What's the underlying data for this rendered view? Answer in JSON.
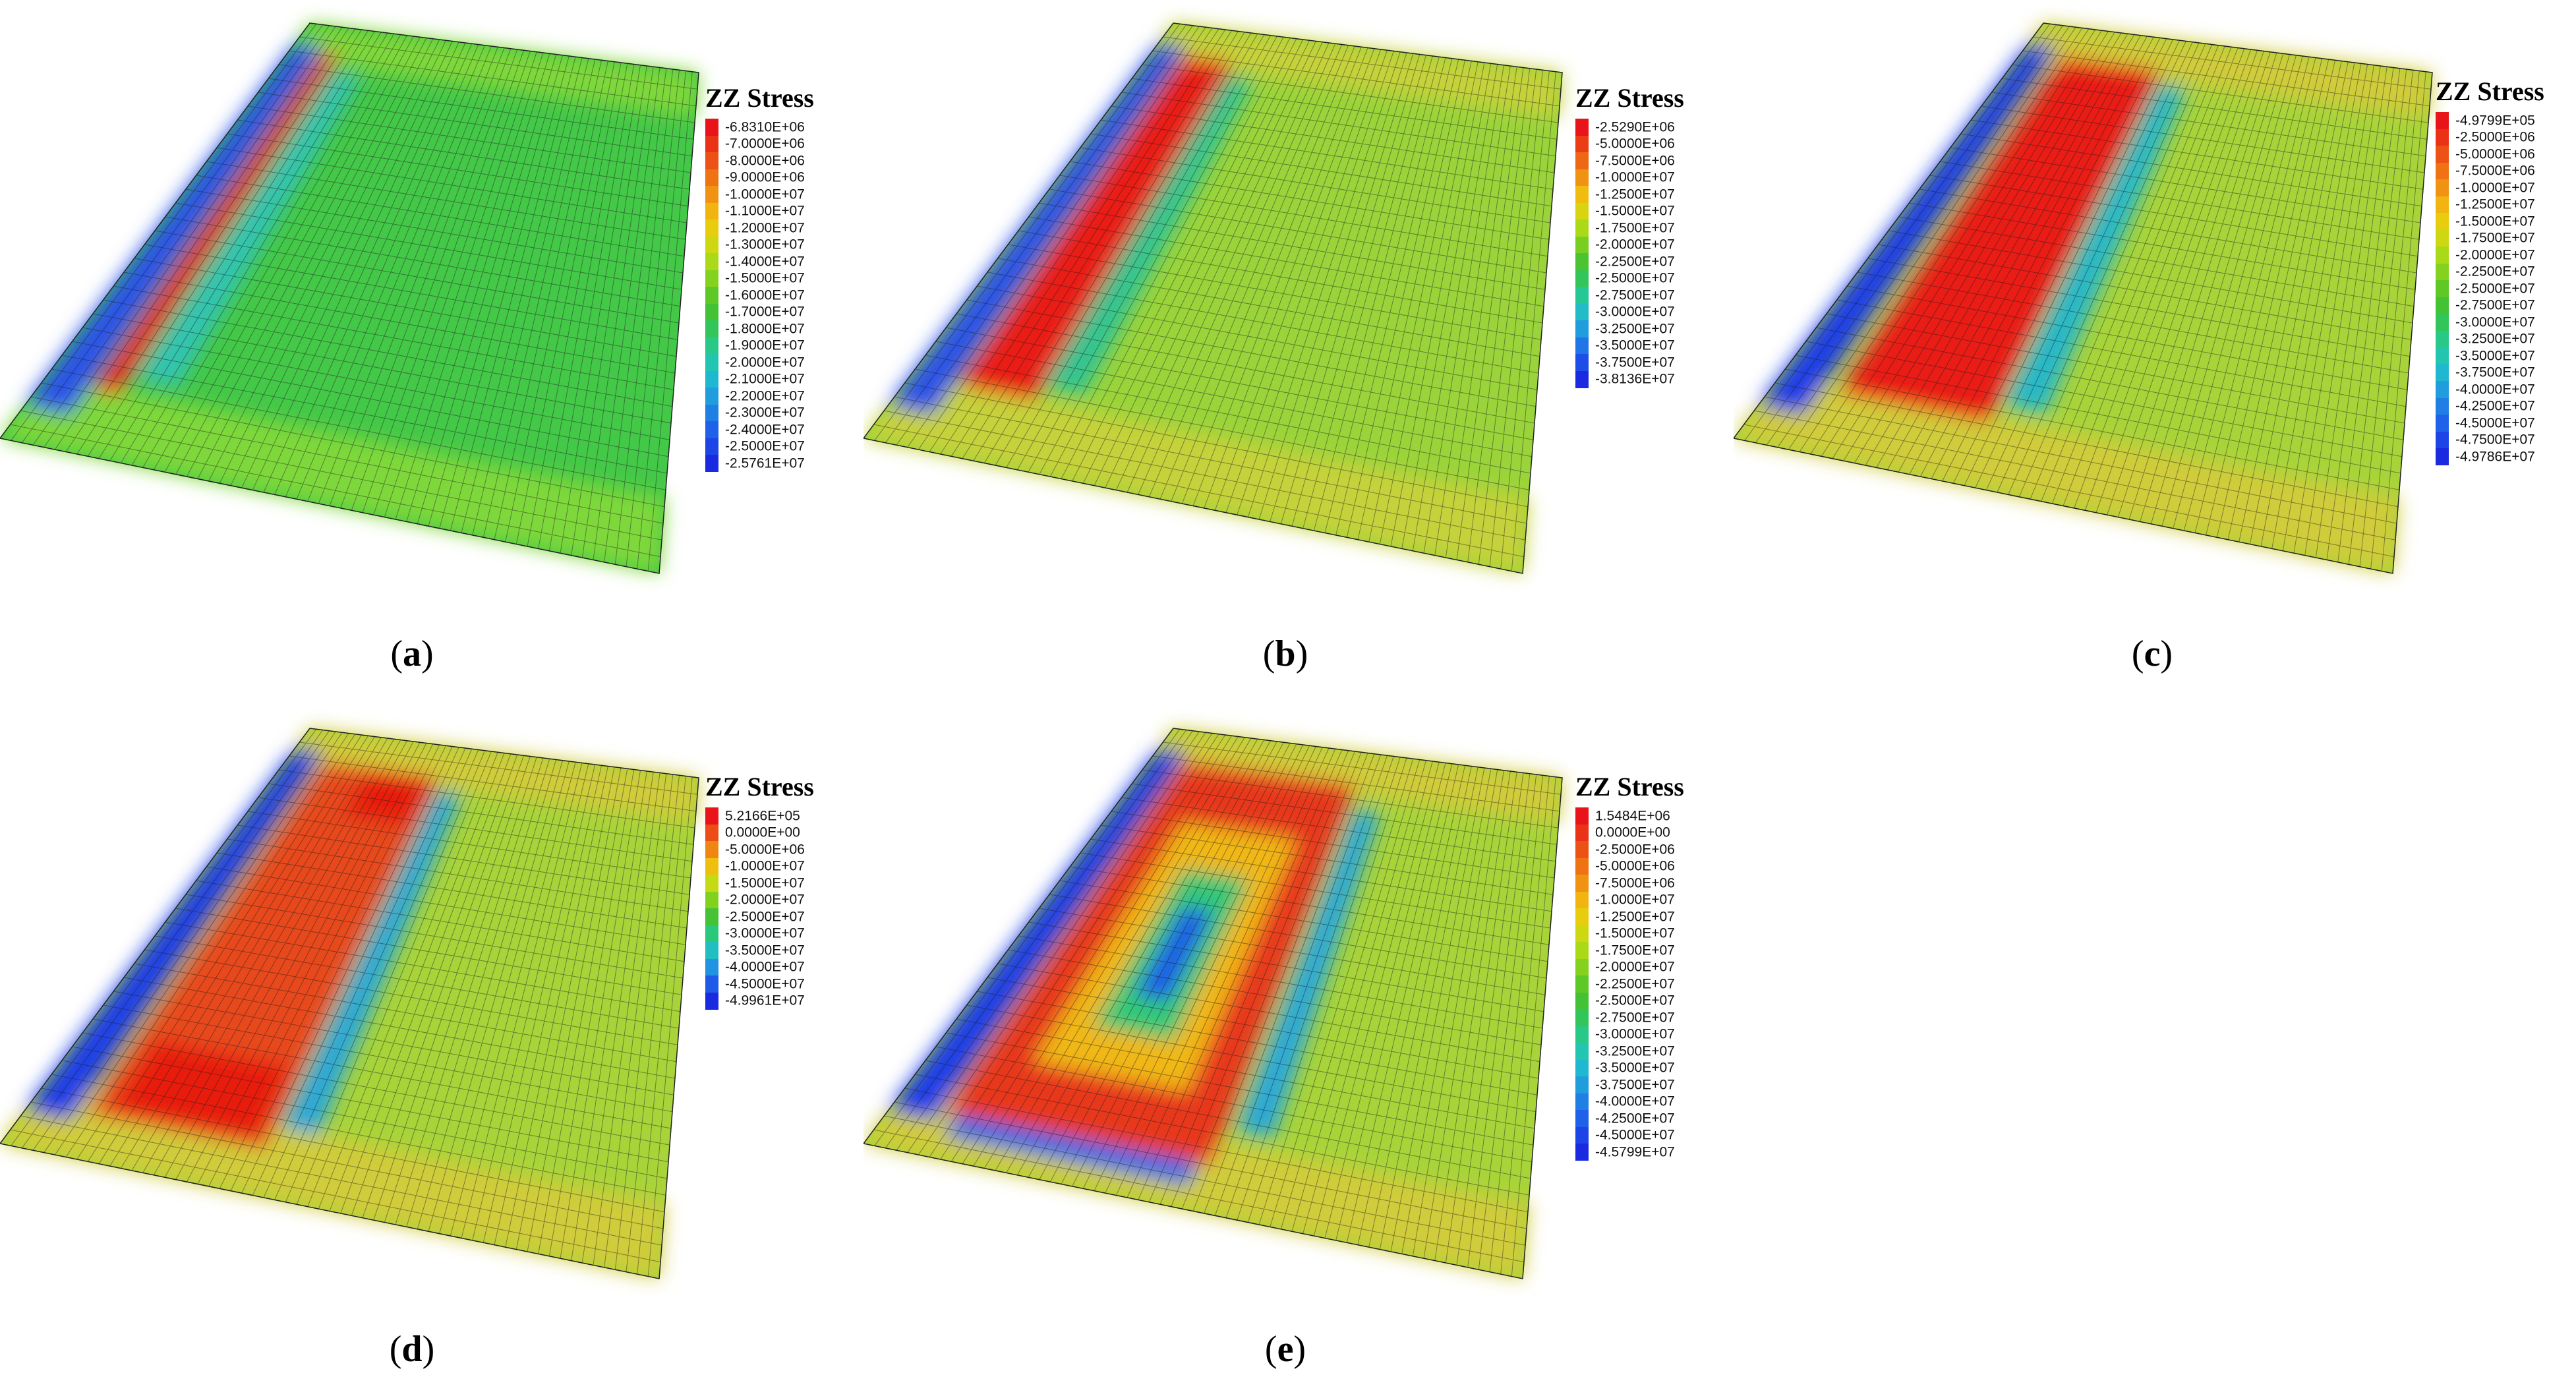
{
  "panels": [
    {
      "id": "a",
      "caption_letter": "a",
      "legend_title": "ZZ Stress",
      "legend_values": [
        "-6.8310E+06",
        "-7.0000E+06",
        "-8.0000E+06",
        "-9.0000E+06",
        "-1.0000E+07",
        "-1.1000E+07",
        "-1.2000E+07",
        "-1.3000E+07",
        "-1.4000E+07",
        "-1.5000E+07",
        "-1.6000E+07",
        "-1.7000E+07",
        "-1.8000E+07",
        "-1.9000E+07",
        "-2.0000E+07",
        "-2.1000E+07",
        "-2.2000E+07",
        "-2.3000E+07",
        "-2.4000E+07",
        "-2.5000E+07",
        "-2.5761E+07"
      ],
      "pattern": "thin-strip",
      "colors": {
        "field": "#44c848",
        "strip": "#ee2a1a",
        "edge": "#2a52e8",
        "band": "#7ed83a"
      }
    },
    {
      "id": "b",
      "caption_letter": "b",
      "legend_title": "ZZ Stress",
      "legend_values": [
        "-2.5290E+06",
        "-5.0000E+06",
        "-7.5000E+06",
        "-1.0000E+07",
        "-1.2500E+07",
        "-1.5000E+07",
        "-1.7500E+07",
        "-2.0000E+07",
        "-2.2500E+07",
        "-2.5000E+07",
        "-2.7500E+07",
        "-3.0000E+07",
        "-3.2500E+07",
        "-3.5000E+07",
        "-3.7500E+07",
        "-3.8136E+07"
      ],
      "pattern": "wide-strip",
      "colors": {
        "field": "#9ad43a",
        "strip": "#ea1e14",
        "edge": "#2a52e8",
        "band": "#c6d23a"
      }
    },
    {
      "id": "c",
      "caption_letter": "c",
      "legend_title": "ZZ Stress",
      "legend_values": [
        "-4.9799E+05",
        "-2.5000E+06",
        "-5.0000E+06",
        "-7.5000E+06",
        "-1.0000E+07",
        "-1.2500E+07",
        "-1.5000E+07",
        "-1.7500E+07",
        "-2.0000E+07",
        "-2.2500E+07",
        "-2.5000E+07",
        "-2.7500E+07",
        "-3.0000E+07",
        "-3.2500E+07",
        "-3.5000E+07",
        "-3.7500E+07",
        "-4.0000E+07",
        "-4.2500E+07",
        "-4.5000E+07",
        "-4.7500E+07",
        "-4.9786E+07"
      ],
      "pattern": "block",
      "colors": {
        "field": "#a8d43a",
        "strip": "#ea1e14",
        "edge": "#1e3ce8",
        "band": "#d0cc3a"
      }
    },
    {
      "id": "d",
      "caption_letter": "d",
      "legend_title": "ZZ Stress",
      "legend_values": [
        "5.2166E+05",
        "0.0000E+00",
        "-5.0000E+06",
        "-1.0000E+07",
        "-1.5000E+07",
        "-2.0000E+07",
        "-2.5000E+07",
        "-3.0000E+07",
        "-3.5000E+07",
        "-4.0000E+07",
        "-4.5000E+07",
        "-4.9961E+07"
      ],
      "pattern": "blob",
      "colors": {
        "field": "#a8d43a",
        "strip": "#e84a1a",
        "edge": "#1e3ce8",
        "band": "#d0cc3a",
        "hot": "#e81a10"
      }
    },
    {
      "id": "e",
      "caption_letter": "e",
      "legend_title": "ZZ Stress",
      "legend_values": [
        "1.5484E+06",
        "0.0000E+00",
        "-2.5000E+06",
        "-5.0000E+06",
        "-7.5000E+06",
        "-1.0000E+07",
        "-1.2500E+07",
        "-1.5000E+07",
        "-1.7500E+07",
        "-2.0000E+07",
        "-2.2500E+07",
        "-2.5000E+07",
        "-2.7500E+07",
        "-3.0000E+07",
        "-3.2500E+07",
        "-3.5000E+07",
        "-3.7500E+07",
        "-4.0000E+07",
        "-4.2500E+07",
        "-4.5000E+07",
        "-4.5799E+07"
      ],
      "pattern": "ring",
      "colors": {
        "field": "#a8d43a",
        "strip": "#e8381a",
        "edge": "#1e3ce8",
        "band": "#d0cc3a",
        "core": "#1a5ae8"
      }
    }
  ]
}
